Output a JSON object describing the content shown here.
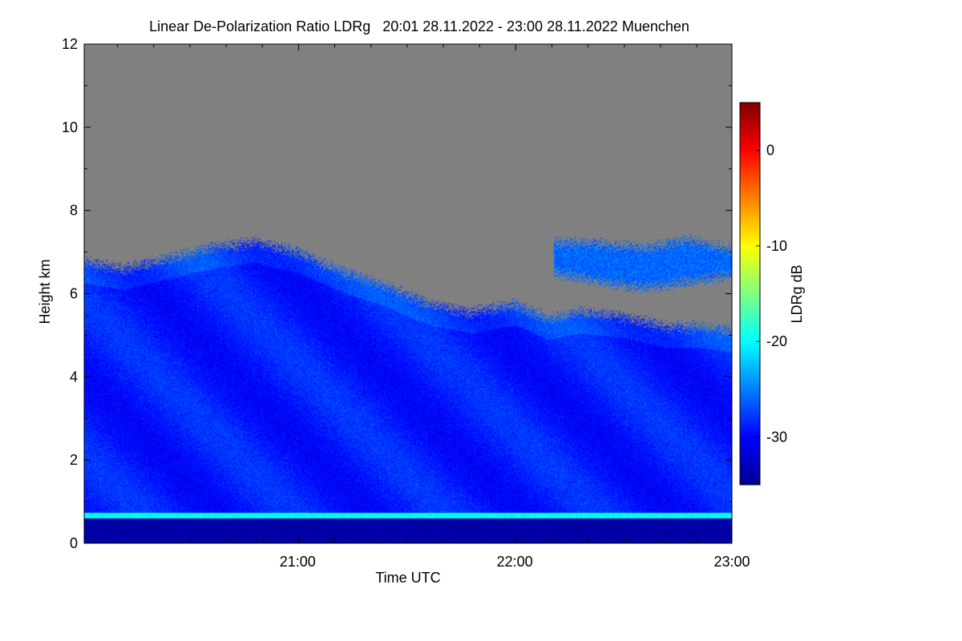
{
  "chart_data": {
    "type": "heatmap",
    "title": "Linear De-Polarization Ratio LDRg   20:01 28.11.2022 - 23:00 28.11.2022 Muenchen",
    "xlabel": "Time UTC",
    "ylabel": "Height km",
    "colorbar_label": "LDRg dB",
    "x_range_hours": [
      20.017,
      23.0
    ],
    "y_range_km": [
      0,
      12
    ],
    "x_major_ticks": [
      {
        "value": 21.0,
        "label": "21:00"
      },
      {
        "value": 22.0,
        "label": "22:00"
      },
      {
        "value": 23.0,
        "label": "23:00"
      }
    ],
    "x_minor_tick_step_hours": 0.1667,
    "y_major_ticks": [
      {
        "value": 0,
        "label": "0"
      },
      {
        "value": 2,
        "label": "2"
      },
      {
        "value": 4,
        "label": "4"
      },
      {
        "value": 6,
        "label": "6"
      },
      {
        "value": 8,
        "label": "8"
      },
      {
        "value": 10,
        "label": "10"
      },
      {
        "value": 12,
        "label": "12"
      }
    ],
    "y_minor_tick_step_km": 1,
    "colorbar_range_db": [
      -35,
      5
    ],
    "colorbar_ticks": [
      {
        "value": 0,
        "label": "0"
      },
      {
        "value": -10,
        "label": "-10"
      },
      {
        "value": -20,
        "label": "-20"
      },
      {
        "value": -30,
        "label": "-30"
      }
    ],
    "colormap": [
      "#00008f",
      "#0000ff",
      "#0080ff",
      "#00ffff",
      "#80ff80",
      "#ffff00",
      "#ff8000",
      "#ff0000",
      "#800000"
    ],
    "no_data_color": "#808080",
    "typical_ldr_db": -29,
    "cloud_top_km": [
      [
        20.02,
        6.75
      ],
      [
        20.2,
        6.6
      ],
      [
        20.4,
        6.85
      ],
      [
        20.6,
        7.1
      ],
      [
        20.8,
        7.25
      ],
      [
        21.0,
        7.0
      ],
      [
        21.2,
        6.55
      ],
      [
        21.4,
        6.2
      ],
      [
        21.6,
        5.75
      ],
      [
        21.8,
        5.55
      ],
      [
        22.0,
        5.75
      ],
      [
        22.15,
        5.4
      ],
      [
        22.3,
        5.55
      ],
      [
        22.5,
        5.45
      ],
      [
        22.7,
        5.2
      ],
      [
        22.85,
        5.2
      ],
      [
        23.0,
        5.1
      ]
    ],
    "upper_layer": {
      "start_hours": 22.18,
      "end_hours": 23.0,
      "base_km": [
        [
          22.18,
          6.5
        ],
        [
          22.4,
          6.3
        ],
        [
          22.6,
          6.15
        ],
        [
          22.8,
          6.3
        ],
        [
          23.0,
          6.45
        ]
      ],
      "top_km": [
        [
          22.18,
          7.25
        ],
        [
          22.4,
          7.2
        ],
        [
          22.6,
          7.1
        ],
        [
          22.8,
          7.3
        ],
        [
          23.0,
          7.05
        ]
      ]
    },
    "bright_layer_km": [
      0.6,
      0.75
    ],
    "bright_layer_ldr_db": -20,
    "surface_layer_ldr_db": -34
  }
}
